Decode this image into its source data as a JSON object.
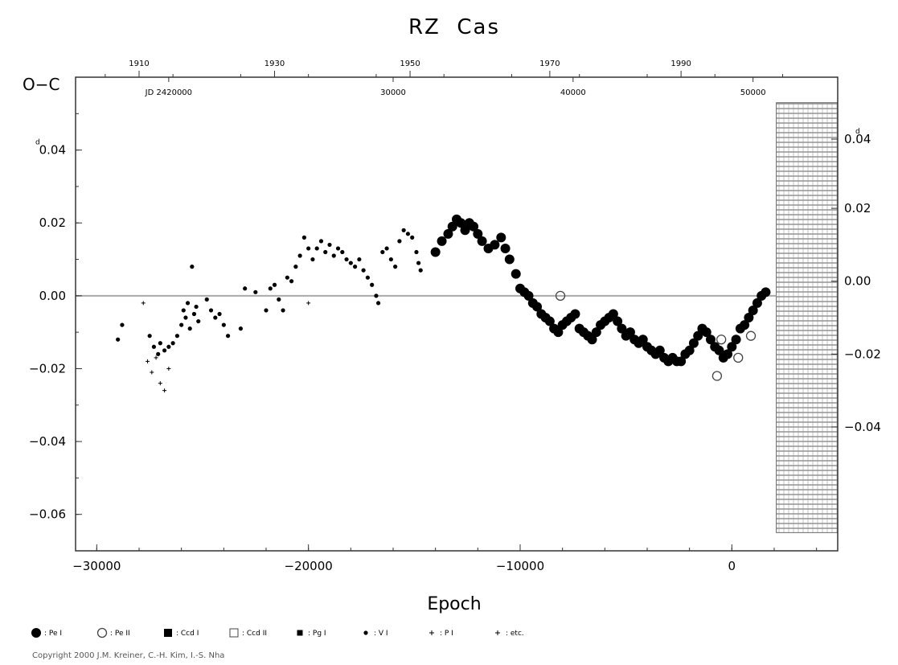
{
  "chart_data": {
    "type": "scatter",
    "title": "RZ  Cas",
    "xlabel": "Epoch",
    "ylabel": "O−C",
    "xlim": [
      -31000,
      5000
    ],
    "ylim": [
      -0.07,
      0.06
    ],
    "xticks": [
      "−30000",
      "−20000",
      "−10000",
      "0"
    ],
    "xtick_values": [
      -30000,
      -20000,
      -10000,
      0
    ],
    "yticks_left": [
      "0.04",
      "0.02",
      "0.00",
      "−0.02",
      "−0.04",
      "−0.06"
    ],
    "ytick_left_values": [
      0.04,
      0.02,
      0.0,
      -0.02,
      -0.04,
      -0.06
    ],
    "ytick_left_super": "d",
    "yticks_right": [
      "0.04",
      "0.02",
      "0.00",
      "−0.02",
      "−0.04"
    ],
    "ytick_right_values": [
      0.043,
      0.024,
      0.004,
      -0.016,
      -0.036
    ],
    "ytick_right_super": "d",
    "top_year_ticks": [
      "1910",
      "1930",
      "1950",
      "1970",
      "1990"
    ],
    "top_year_epochs": [
      -28000,
      -21600,
      -15200,
      -8600,
      -2400
    ],
    "top_jd_ticks": [
      "JD  2420000",
      "30000",
      "40000",
      "50000"
    ],
    "top_jd_epochs": [
      -26600,
      -16000,
      -7500,
      1000
    ],
    "grid": false,
    "zero_line": true,
    "hatched_region": {
      "x0": 2100,
      "x1": 5000,
      "y0": -0.065,
      "y1": 0.053
    },
    "legend": [
      "Pe I",
      "Pe II",
      "Ccd I",
      "Ccd II",
      "Pg I",
      "V I",
      "P I",
      "etc."
    ],
    "copyright": "Copyright 2000 J.M. Kreiner, C.-H. Kim, I.-S. Nha",
    "series": [
      {
        "name": "Pe I",
        "marker": "filled-circle-large",
        "points": [
          [
            -14000,
            0.012
          ],
          [
            -13700,
            0.015
          ],
          [
            -13400,
            0.017
          ],
          [
            -13200,
            0.019
          ],
          [
            -13000,
            0.021
          ],
          [
            -12800,
            0.02
          ],
          [
            -12600,
            0.018
          ],
          [
            -12400,
            0.02
          ],
          [
            -12200,
            0.019
          ],
          [
            -12000,
            0.017
          ],
          [
            -11800,
            0.015
          ],
          [
            -11500,
            0.013
          ],
          [
            -11200,
            0.014
          ],
          [
            -10900,
            0.016
          ],
          [
            -10700,
            0.013
          ],
          [
            -10500,
            0.01
          ],
          [
            -10200,
            0.006
          ],
          [
            -10000,
            0.002
          ],
          [
            -9800,
            0.001
          ],
          [
            -9600,
            0.0
          ],
          [
            -9400,
            -0.002
          ],
          [
            -9200,
            -0.003
          ],
          [
            -9000,
            -0.005
          ],
          [
            -8800,
            -0.006
          ],
          [
            -8600,
            -0.007
          ],
          [
            -8400,
            -0.009
          ],
          [
            -8200,
            -0.01
          ],
          [
            -8000,
            -0.008
          ],
          [
            -7800,
            -0.007
          ],
          [
            -7600,
            -0.006
          ],
          [
            -7400,
            -0.005
          ],
          [
            -7200,
            -0.009
          ],
          [
            -7000,
            -0.01
          ],
          [
            -6800,
            -0.011
          ],
          [
            -6600,
            -0.012
          ],
          [
            -6400,
            -0.01
          ],
          [
            -6200,
            -0.008
          ],
          [
            -6000,
            -0.007
          ],
          [
            -5800,
            -0.006
          ],
          [
            -5600,
            -0.005
          ],
          [
            -5400,
            -0.007
          ],
          [
            -5200,
            -0.009
          ],
          [
            -5000,
            -0.011
          ],
          [
            -4800,
            -0.01
          ],
          [
            -4600,
            -0.012
          ],
          [
            -4400,
            -0.013
          ],
          [
            -4200,
            -0.012
          ],
          [
            -4000,
            -0.014
          ],
          [
            -3800,
            -0.015
          ],
          [
            -3600,
            -0.016
          ],
          [
            -3400,
            -0.015
          ],
          [
            -3200,
            -0.017
          ],
          [
            -3000,
            -0.018
          ],
          [
            -2800,
            -0.017
          ],
          [
            -2600,
            -0.018
          ],
          [
            -2400,
            -0.018
          ],
          [
            -2200,
            -0.016
          ],
          [
            -2000,
            -0.015
          ],
          [
            -1800,
            -0.013
          ],
          [
            -1600,
            -0.011
          ],
          [
            -1400,
            -0.009
          ],
          [
            -1200,
            -0.01
          ],
          [
            -1000,
            -0.012
          ],
          [
            -800,
            -0.014
          ],
          [
            -600,
            -0.015
          ],
          [
            -400,
            -0.017
          ],
          [
            -200,
            -0.016
          ],
          [
            0,
            -0.014
          ],
          [
            200,
            -0.012
          ],
          [
            400,
            -0.009
          ],
          [
            600,
            -0.008
          ],
          [
            800,
            -0.006
          ],
          [
            1000,
            -0.004
          ],
          [
            1200,
            -0.002
          ],
          [
            1400,
            0.0
          ],
          [
            1600,
            0.001
          ]
        ]
      },
      {
        "name": "Pe II",
        "marker": "open-circle",
        "points": [
          [
            -8100,
            0.0
          ],
          [
            -700,
            -0.022
          ],
          [
            -500,
            -0.012
          ],
          [
            300,
            -0.017
          ],
          [
            900,
            -0.011
          ]
        ]
      },
      {
        "name": "Pg I",
        "marker": "filled-dot",
        "points": [
          [
            -29000,
            -0.012
          ],
          [
            -28800,
            -0.008
          ],
          [
            -27500,
            -0.011
          ],
          [
            -27300,
            -0.014
          ],
          [
            -27100,
            -0.016
          ],
          [
            -27000,
            -0.013
          ],
          [
            -26800,
            -0.015
          ],
          [
            -26600,
            -0.014
          ],
          [
            -26400,
            -0.013
          ],
          [
            -26200,
            -0.011
          ],
          [
            -26000,
            -0.008
          ],
          [
            -25900,
            -0.004
          ],
          [
            -25800,
            -0.006
          ],
          [
            -25700,
            -0.002
          ],
          [
            -25600,
            -0.009
          ],
          [
            -25500,
            0.008
          ],
          [
            -25400,
            -0.005
          ],
          [
            -25300,
            -0.003
          ],
          [
            -25200,
            -0.007
          ],
          [
            -24800,
            -0.001
          ],
          [
            -24600,
            -0.004
          ],
          [
            -24400,
            -0.006
          ],
          [
            -24200,
            -0.005
          ],
          [
            -24000,
            -0.008
          ],
          [
            -23800,
            -0.011
          ],
          [
            -23200,
            -0.009
          ],
          [
            -23000,
            0.002
          ],
          [
            -22500,
            0.001
          ],
          [
            -22000,
            -0.004
          ],
          [
            -21800,
            0.002
          ],
          [
            -21600,
            0.003
          ],
          [
            -21400,
            -0.001
          ],
          [
            -21200,
            -0.004
          ],
          [
            -21000,
            0.005
          ],
          [
            -20800,
            0.004
          ],
          [
            -20600,
            0.008
          ],
          [
            -20400,
            0.011
          ],
          [
            -20200,
            0.016
          ],
          [
            -20000,
            0.013
          ],
          [
            -19800,
            0.01
          ],
          [
            -19600,
            0.013
          ],
          [
            -19400,
            0.015
          ],
          [
            -19200,
            0.012
          ],
          [
            -19000,
            0.014
          ],
          [
            -18800,
            0.011
          ],
          [
            -18600,
            0.013
          ],
          [
            -18400,
            0.012
          ],
          [
            -18200,
            0.01
          ],
          [
            -18000,
            0.009
          ],
          [
            -17800,
            0.008
          ],
          [
            -17600,
            0.01
          ],
          [
            -17400,
            0.007
          ],
          [
            -17200,
            0.005
          ],
          [
            -17000,
            0.003
          ],
          [
            -16800,
            0.0
          ],
          [
            -16700,
            -0.002
          ],
          [
            -16500,
            0.012
          ],
          [
            -16300,
            0.013
          ],
          [
            -16100,
            0.01
          ],
          [
            -15900,
            0.008
          ],
          [
            -15700,
            0.015
          ],
          [
            -15500,
            0.018
          ],
          [
            -15300,
            0.017
          ],
          [
            -15100,
            0.016
          ],
          [
            -14900,
            0.012
          ],
          [
            -14800,
            0.009
          ],
          [
            -14700,
            0.007
          ]
        ]
      },
      {
        "name": "P I",
        "marker": "small-plus",
        "points": [
          [
            -27800,
            -0.002
          ],
          [
            -27600,
            -0.018
          ],
          [
            -27400,
            -0.021
          ],
          [
            -27200,
            -0.017
          ],
          [
            -27000,
            -0.024
          ],
          [
            -26800,
            -0.026
          ],
          [
            -26600,
            -0.02
          ],
          [
            -20000,
            -0.002
          ]
        ]
      }
    ]
  }
}
